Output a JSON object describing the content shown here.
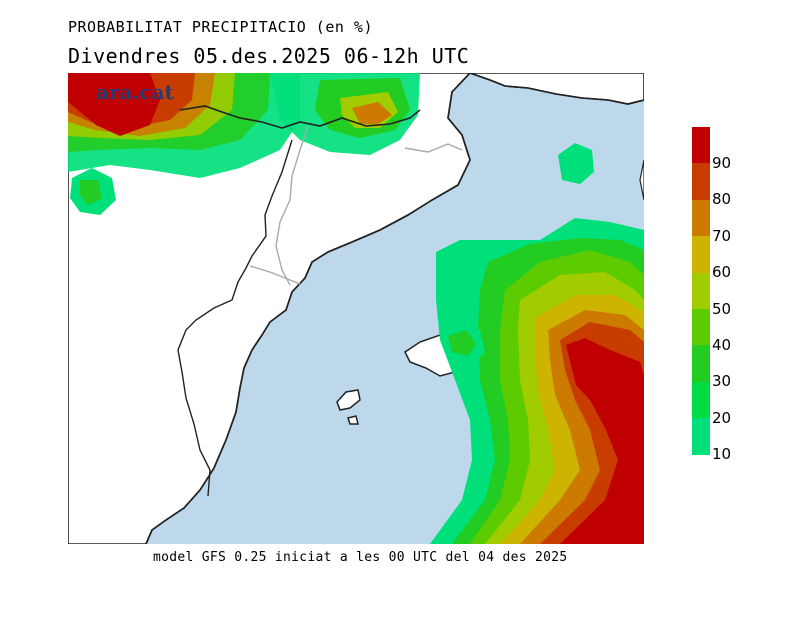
{
  "header": {
    "title": "PROBABILITAT PRECIPITACIO (en %)",
    "subtitle": "Divendres  05.des.2025 06-12h UTC"
  },
  "footer": {
    "text": "model GFS 0.25 iniciat a les 00 UTC del 04 des 2025"
  },
  "logo": {
    "text": "ara.cat",
    "color": "#1f3e78"
  },
  "colors": {
    "sea": "#bcd8ea",
    "land": "#ffffff",
    "coast": "#222222",
    "border": "#a9a9a9"
  },
  "legend": {
    "levels": [
      {
        "label": "90",
        "color": "#c00000"
      },
      {
        "label": "80",
        "color": "#c83c00"
      },
      {
        "label": "70",
        "color": "#cc7a00"
      },
      {
        "label": "60",
        "color": "#ccb400"
      },
      {
        "label": "50",
        "color": "#a0cc00"
      },
      {
        "label": "40",
        "color": "#5ccc00"
      },
      {
        "label": "30",
        "color": "#22cc22"
      },
      {
        "label": "20",
        "color": "#00dd44"
      },
      {
        "label": "10",
        "color": "#00e07a"
      }
    ]
  }
}
